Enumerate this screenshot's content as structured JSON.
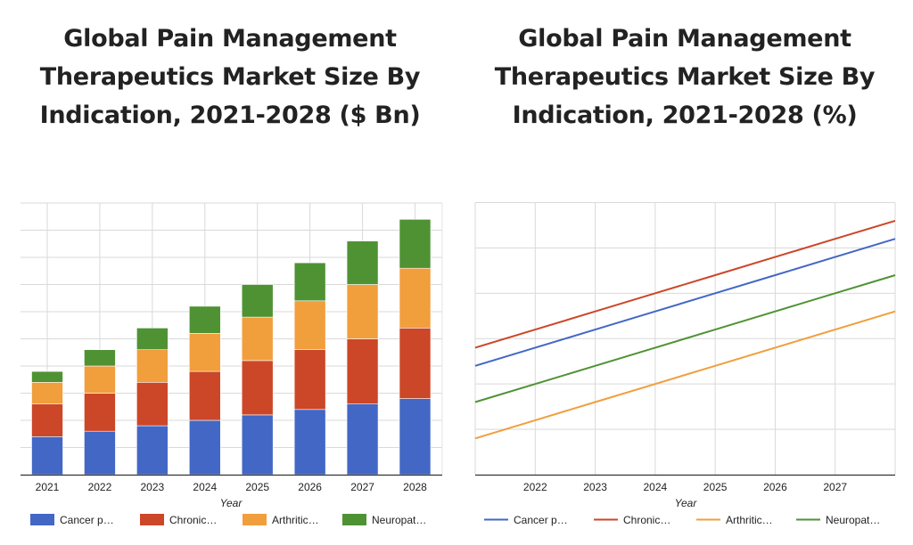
{
  "chart_data": [
    {
      "type": "bar",
      "stacked": true,
      "title": "Global Pain Management Therapeutics Market Size By Indication, 2021-2028 ($ Bn)",
      "title_lines": [
        "Global Pain Management",
        "Therapeutics Market Size By",
        "Indication, 2021-2028 ($ Bn)"
      ],
      "xlabel": "Year",
      "ylabel": "",
      "categories": [
        "2021",
        "2022",
        "2023",
        "2024",
        "2025",
        "2026",
        "2027",
        "2028"
      ],
      "ylim": [
        0,
        10
      ],
      "y_gridlines": 10,
      "y_tick_labels_shown": false,
      "grid": true,
      "legend_position": "bottom",
      "series": [
        {
          "name": "Cancer p…",
          "color": "#4267c5",
          "values": [
            1.4,
            1.6,
            1.8,
            2.0,
            2.2,
            2.4,
            2.6,
            2.8
          ]
        },
        {
          "name": "Chronic…",
          "color": "#cc4628",
          "values": [
            1.2,
            1.4,
            1.6,
            1.8,
            2.0,
            2.2,
            2.4,
            2.6
          ]
        },
        {
          "name": "Arthritic…",
          "color": "#f19e3c",
          "values": [
            0.8,
            1.0,
            1.2,
            1.4,
            1.6,
            1.8,
            2.0,
            2.2
          ]
        },
        {
          "name": "Neuropat…",
          "color": "#4f9234",
          "values": [
            0.4,
            0.6,
            0.8,
            1.0,
            1.2,
            1.4,
            1.6,
            1.8
          ]
        }
      ]
    },
    {
      "type": "line",
      "title": "Global Pain Management Therapeutics Market Size By Indication, 2021-2028 (%)",
      "title_lines": [
        "Global Pain Management",
        "Therapeutics Market Size By",
        "Indication, 2021-2028 (%)"
      ],
      "xlabel": "Year",
      "ylabel": "",
      "x": [
        2021,
        2022,
        2023,
        2024,
        2025,
        2026,
        2027,
        2028
      ],
      "x_tick_labels": [
        "2022",
        "2023",
        "2024",
        "2025",
        "2026",
        "2027"
      ],
      "xlim": [
        2021,
        2028
      ],
      "ylim": [
        0,
        6
      ],
      "y_gridlines": 6,
      "y_tick_labels_shown": false,
      "grid": true,
      "legend_position": "bottom",
      "series": [
        {
          "name": "Cancer p…",
          "color": "#4267c5",
          "values": [
            2.4,
            2.8,
            3.2,
            3.6,
            4.0,
            4.4,
            4.8,
            5.2
          ]
        },
        {
          "name": "Chronic…",
          "color": "#cc4628",
          "values": [
            2.8,
            3.2,
            3.6,
            4.0,
            4.4,
            4.8,
            5.2,
            5.6
          ]
        },
        {
          "name": "Arthritic…",
          "color": "#f19e3c",
          "values": [
            0.8,
            1.2,
            1.6,
            2.0,
            2.4,
            2.8,
            3.2,
            3.6
          ]
        },
        {
          "name": "Neuropat…",
          "color": "#4f9234",
          "values": [
            1.6,
            2.0,
            2.4,
            2.8,
            3.2,
            3.6,
            4.0,
            4.4
          ]
        }
      ]
    }
  ]
}
